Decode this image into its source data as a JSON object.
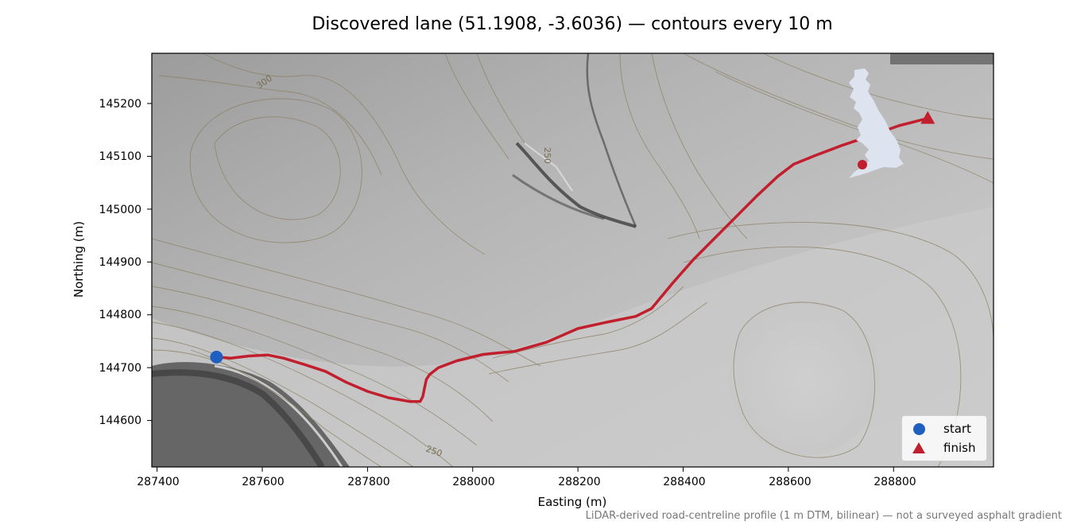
{
  "title": "Discovered lane (51.1908, -3.6036) — contours every 10 m",
  "xlabel": "Easting (m)",
  "ylabel": "Northing (m)",
  "footnote": "LiDAR-derived road-centreline profile (1 m DTM, bilinear) — not a surveyed asphalt gradient",
  "x_ticks": [
    "287400",
    "287600",
    "287800",
    "288000",
    "288200",
    "288400",
    "288600",
    "288800"
  ],
  "y_ticks": [
    "145200",
    "145100",
    "145000",
    "144900",
    "144800",
    "144700",
    "144600"
  ],
  "contour_labels": [
    "300",
    "250",
    "250"
  ],
  "legend": {
    "start": "start",
    "finish": "finish"
  },
  "colors": {
    "route": "#c11f2d",
    "start": "#1f5fbf",
    "finish": "#c11f2d",
    "inset_land": "#dde3ef"
  },
  "chart_data": {
    "type": "line",
    "x_range": [
      287390,
      288990
    ],
    "y_range": [
      144512,
      145295
    ],
    "route": {
      "x": [
        287513,
        287540,
        287575,
        287610,
        287640,
        287680,
        287720,
        287760,
        287800,
        287840,
        287880,
        287900,
        287905,
        287908,
        287912,
        287918,
        287935,
        287970,
        288020,
        288080,
        288140,
        288200,
        288250,
        288310,
        288340,
        288380,
        288420,
        288480,
        288540,
        288580,
        288610,
        288650,
        288700,
        288760,
        288810,
        288865
      ],
      "y": [
        144720,
        144718,
        144722,
        144724,
        144718,
        144706,
        144693,
        144672,
        144655,
        144643,
        144636,
        144636,
        144645,
        144660,
        144678,
        144687,
        144700,
        144713,
        144725,
        144731,
        144748,
        144774,
        144785,
        144797,
        144812,
        144860,
        144905,
        144965,
        145025,
        145062,
        145085,
        145101,
        145120,
        145140,
        145158,
        145172
      ]
    },
    "start": {
      "x": 287513,
      "y": 144720
    },
    "finish": {
      "x": 288865,
      "y": 145172
    },
    "grid": false,
    "legend_position": "bottom-right",
    "inset": "UK locator map (top-right)"
  }
}
